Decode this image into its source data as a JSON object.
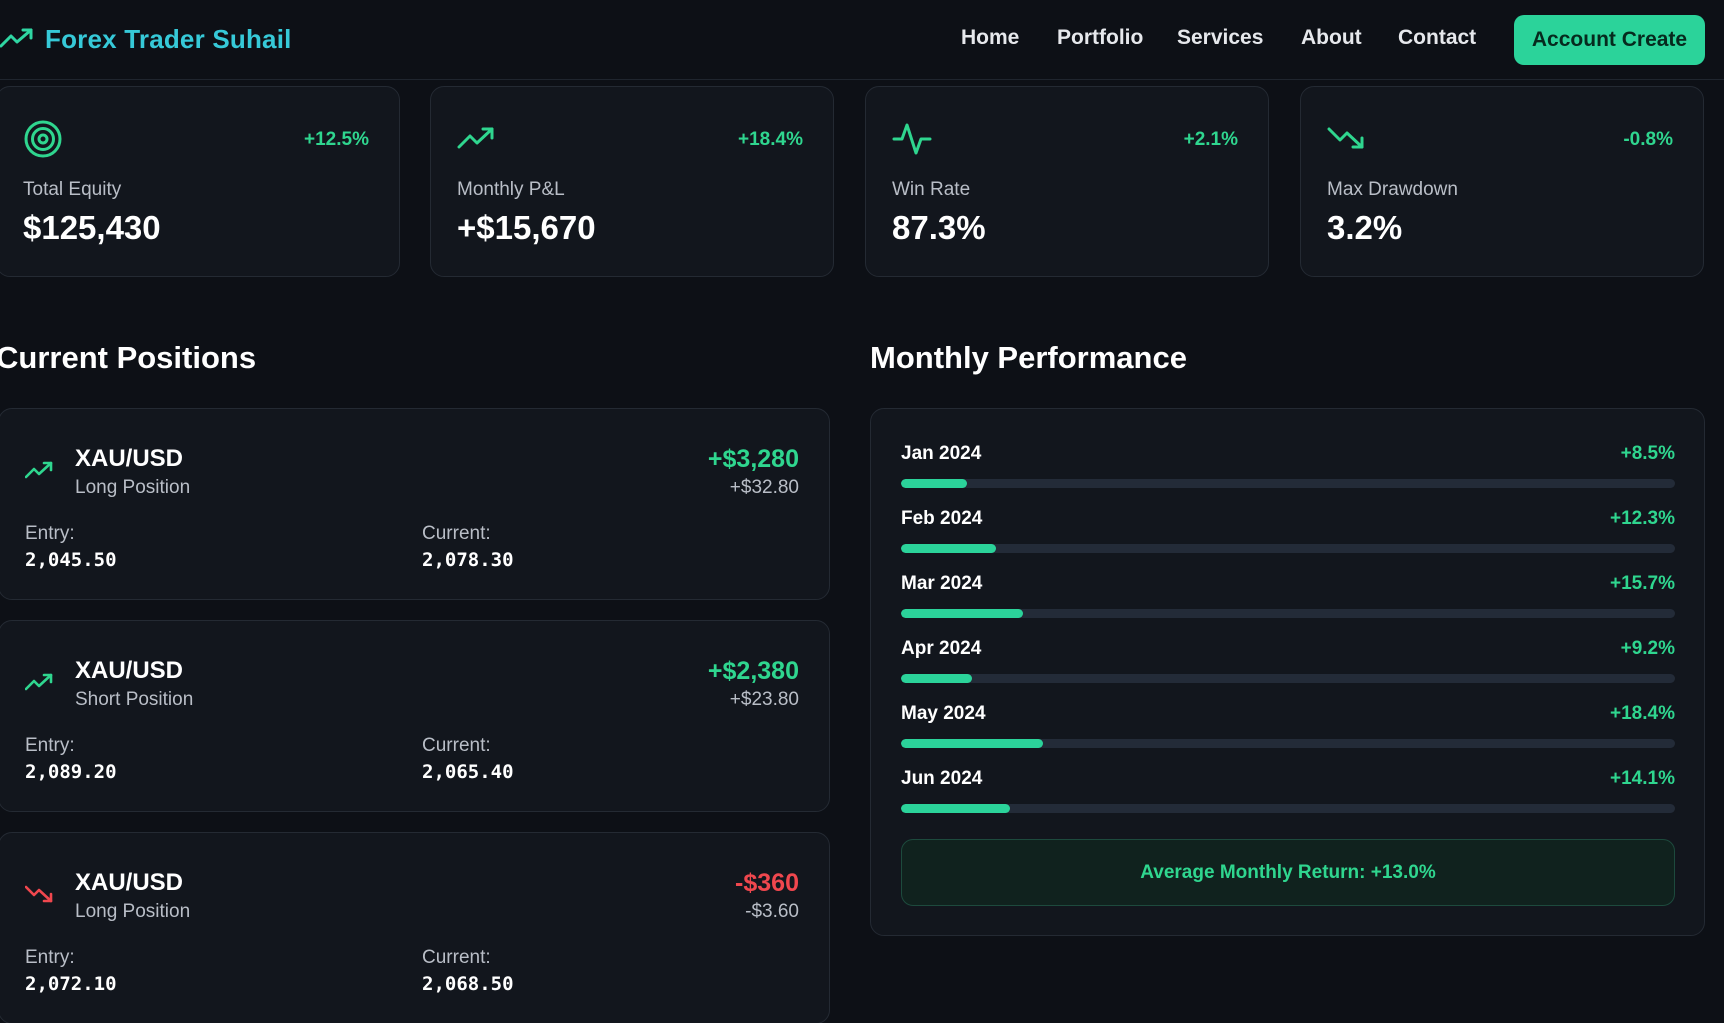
{
  "nav": {
    "brand": "Forex Trader Suhail",
    "brand_icon": "trending-up-icon",
    "links": [
      "Home",
      "Portfolio",
      "Services",
      "About",
      "Contact"
    ],
    "cta": "Account Create"
  },
  "colors": {
    "accent": "#2bd39a",
    "brand_text": "#36c9d8",
    "positive": "#2fd68f",
    "negative": "#f0474e",
    "background": "#0d1016",
    "card": "#12161d"
  },
  "stats": [
    {
      "icon": "target-icon",
      "change": "+12.5%",
      "label": "Total Equity",
      "value": "$125,430"
    },
    {
      "icon": "trending-up-icon",
      "change": "+18.4%",
      "label": "Monthly P&L",
      "value": "+$15,670"
    },
    {
      "icon": "activity-icon",
      "change": "+2.1%",
      "label": "Win Rate",
      "value": "87.3%"
    },
    {
      "icon": "trending-down-icon",
      "change": "-0.8%",
      "label": "Max Drawdown",
      "value": "3.2%"
    }
  ],
  "positions_title": "Current Positions",
  "positions": [
    {
      "icon": "trending-up-icon",
      "symbol": "XAU/USD",
      "type": "Long Position",
      "pnl": "+$3,280",
      "pnl_sub": "+$32.80",
      "entry_label": "Entry:",
      "entry": "2,045.50",
      "current_label": "Current:",
      "current": "2,078.30",
      "direction": "up"
    },
    {
      "icon": "trending-up-icon",
      "symbol": "XAU/USD",
      "type": "Short Position",
      "pnl": "+$2,380",
      "pnl_sub": "+$23.80",
      "entry_label": "Entry:",
      "entry": "2,089.20",
      "current_label": "Current:",
      "current": "2,065.40",
      "direction": "up"
    },
    {
      "icon": "trending-down-icon",
      "symbol": "XAU/USD",
      "type": "Long Position",
      "pnl": "-$360",
      "pnl_sub": "-$3.60",
      "entry_label": "Entry:",
      "entry": "2,072.10",
      "current_label": "Current:",
      "current": "2,068.50",
      "direction": "down"
    }
  ],
  "performance_title": "Monthly Performance",
  "performance": [
    {
      "month": "Jan 2024",
      "value": "+8.5%",
      "pct": 8.5
    },
    {
      "month": "Feb 2024",
      "value": "+12.3%",
      "pct": 12.3
    },
    {
      "month": "Mar 2024",
      "value": "+15.7%",
      "pct": 15.7
    },
    {
      "month": "Apr 2024",
      "value": "+9.2%",
      "pct": 9.2
    },
    {
      "month": "May 2024",
      "value": "+18.4%",
      "pct": 18.4
    },
    {
      "month": "Jun 2024",
      "value": "+14.1%",
      "pct": 14.1
    }
  ],
  "performance_scale_max": 100,
  "average": "Average Monthly Return: +13.0%"
}
